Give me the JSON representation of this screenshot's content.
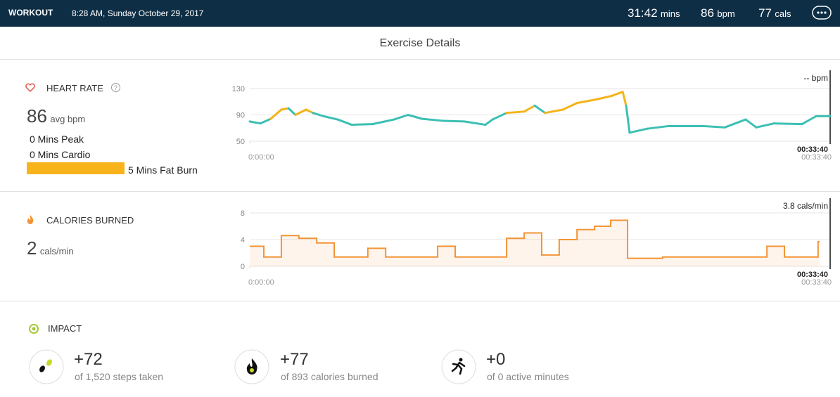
{
  "header": {
    "label": "WORKOUT",
    "datetime": "8:28 AM, Sunday October 29, 2017",
    "stats": [
      {
        "value": "31:42",
        "unit": "mins"
      },
      {
        "value": "86",
        "unit": "bpm"
      },
      {
        "value": "77",
        "unit": "cals"
      }
    ]
  },
  "title": "Exercise Details",
  "heart_rate": {
    "label": "HEART RATE",
    "value": "86",
    "unit": "avg bpm",
    "zones": [
      "0 Mins Peak",
      "0 Mins Cardio",
      "5 Mins Fat Burn"
    ]
  },
  "calories": {
    "label": "CALORIES BURNED",
    "value": "2",
    "unit": "cals/min"
  },
  "impact": {
    "label": "IMPACT",
    "items": [
      {
        "value": "+72",
        "caption": "of 1,520 steps taken"
      },
      {
        "value": "+77",
        "caption": "of 893 calories burned"
      },
      {
        "value": "+0",
        "caption": "of 0 active minutes"
      }
    ]
  },
  "chart_data": [
    {
      "type": "line",
      "x": [
        0,
        37,
        73,
        110,
        135,
        159,
        196,
        220,
        257,
        306,
        355,
        428,
        502,
        551,
        600,
        673,
        747,
        820,
        845,
        894,
        955,
        992,
        1028,
        1090,
        1139,
        1212,
        1261,
        1298,
        1310,
        1322,
        1383,
        1457,
        1579,
        1653,
        1726,
        1763,
        1824,
        1922,
        1971,
        2020
      ],
      "series": [
        {
          "color": "#3cbfb4",
          "values": [
            80,
            77,
            84,
            null,
            null,
            90,
            null,
            null,
            88,
            83,
            75,
            76,
            83,
            90,
            84,
            81,
            80,
            75,
            83,
            93,
            null,
            null,
            93,
            null,
            null,
            null,
            null,
            null,
            null,
            63,
            69,
            73,
            73,
            71,
            83,
            71,
            77,
            76,
            88,
            88
          ]
        },
        {
          "color": "#f5b31a",
          "values": [
            null,
            null,
            null,
            98,
            100,
            null,
            98,
            93,
            null,
            null,
            null,
            null,
            null,
            null,
            null,
            null,
            null,
            null,
            null,
            null,
            95,
            104,
            null,
            98,
            108,
            114,
            119,
            125,
            104,
            null,
            null,
            null,
            null,
            null,
            null,
            null,
            null,
            null,
            null,
            null
          ]
        }
      ],
      "xlim": [
        0,
        2020
      ],
      "xticks": [
        {
          "value": 0,
          "label": "0:00:00"
        },
        {
          "value": 2020,
          "label": "00:33:40"
        }
      ],
      "ylim": [
        50,
        130
      ],
      "yticks": [
        50,
        90,
        130
      ],
      "grid": true,
      "cursor_value": "-- bpm",
      "cursor_time": "00:33:40"
    },
    {
      "type": "step",
      "color": "#f29436",
      "x": [
        0,
        49,
        110,
        171,
        233,
        294,
        411,
        473,
        654,
        715,
        894,
        955,
        1016,
        1077,
        1139,
        1200,
        1256,
        1315,
        1437,
        1800,
        1861,
        1978
      ],
      "values": [
        3,
        1.4,
        4.6,
        4.2,
        3.5,
        1.4,
        2.7,
        1.4,
        3,
        1.4,
        4.2,
        5,
        1.7,
        4,
        5.5,
        6,
        6.9,
        1.2,
        1.4,
        3,
        1.4,
        3.7
      ],
      "xlim": [
        0,
        2020
      ],
      "xticks": [
        {
          "value": 0,
          "label": "0:00:00"
        },
        {
          "value": 2020,
          "label": "00:33:40"
        }
      ],
      "ylim": [
        0,
        8
      ],
      "yticks": [
        0,
        4,
        8
      ],
      "grid": true,
      "cursor_value": "3.8 cals/min",
      "cursor_time": "00:33:40"
    }
  ]
}
